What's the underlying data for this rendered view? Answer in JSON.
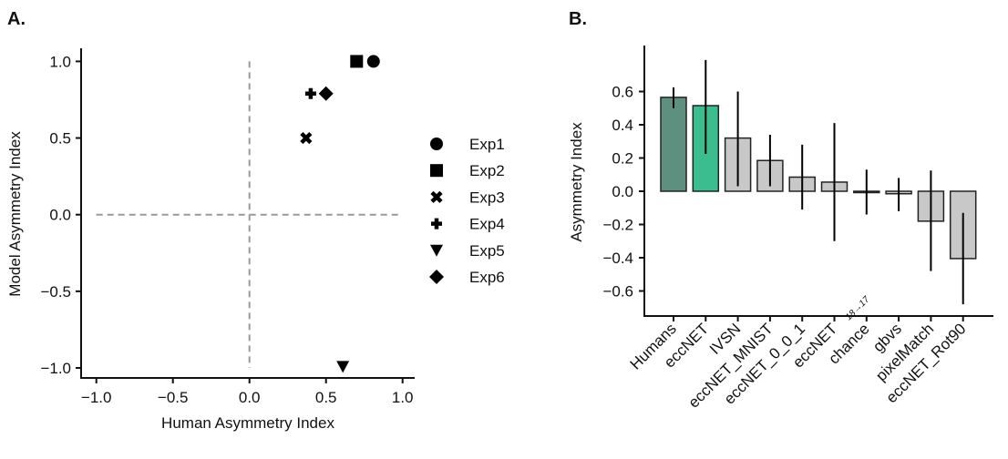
{
  "chart_data": [
    {
      "type": "scatter",
      "panel_label": "A.",
      "xlabel": "Human Asymmetry Index",
      "ylabel": "Model Asymmetry Index",
      "xlim": [
        -1.1,
        1.1
      ],
      "ylim": [
        -1.05,
        1.05
      ],
      "xticks": [
        "−1.0",
        "−0.5",
        "0.0",
        "0.5",
        "1.0"
      ],
      "xtick_values": [
        -1,
        -0.5,
        0,
        0.5,
        1
      ],
      "yticks": [
        "1.0",
        "0.5",
        "0.0",
        "−0.5",
        "−1.0"
      ],
      "ytick_values": [
        1,
        0.5,
        0,
        -0.5,
        -1
      ],
      "grid": false,
      "reference_lines": "dashed at x=0 and y=0",
      "legend_position": "right",
      "series": [
        {
          "name": "Exp1",
          "marker": "circle",
          "x": 0.81,
          "y": 1.0
        },
        {
          "name": "Exp2",
          "marker": "square",
          "x": 0.7,
          "y": 1.0
        },
        {
          "name": "Exp3",
          "marker": "x",
          "x": 0.37,
          "y": 0.5
        },
        {
          "name": "Exp4",
          "marker": "plus",
          "x": 0.4,
          "y": 0.79
        },
        {
          "name": "Exp5",
          "marker": "triangle-down",
          "x": 0.61,
          "y": -0.99
        },
        {
          "name": "Exp6",
          "marker": "diamond",
          "x": 0.5,
          "y": 0.79
        }
      ]
    },
    {
      "type": "bar",
      "panel_label": "B.",
      "xlabel": "",
      "ylabel": "Asymmetry Index",
      "ylim": [
        -0.7,
        0.85
      ],
      "yticks": [
        "0.6",
        "0.4",
        "0.2",
        "0.0",
        "−0.2",
        "−0.4",
        "−0.6"
      ],
      "ytick_values": [
        0.6,
        0.4,
        0.2,
        0,
        -0.2,
        -0.4,
        -0.6
      ],
      "categories": [
        "Humans",
        "eccNET",
        "IVSN",
        "eccNET_MNIST",
        "eccNET_0_0_1",
        "eccNET",
        "chance",
        "gbvs",
        "pixelMatch",
        "eccNET_Rot90"
      ],
      "category_subscripts": [
        "",
        "",
        "",
        "",
        "",
        "18→17",
        "",
        "",
        "",
        ""
      ],
      "values": [
        0.565,
        0.515,
        0.32,
        0.185,
        0.085,
        0.055,
        0.0,
        -0.015,
        -0.18,
        -0.405
      ],
      "error_low": [
        0.5,
        0.225,
        0.03,
        0.03,
        -0.11,
        -0.3,
        -0.14,
        -0.12,
        -0.48,
        -0.68
      ],
      "error_high": [
        0.625,
        0.79,
        0.6,
        0.34,
        0.28,
        0.41,
        0.13,
        0.08,
        0.125,
        -0.13
      ],
      "colors": [
        "#5e9080",
        "#3bbd8f",
        "#c8c8c8",
        "#c8c8c8",
        "#c8c8c8",
        "#c8c8c8",
        "#c8c8c8",
        "#c8c8c8",
        "#c8c8c8",
        "#c8c8c8"
      ]
    }
  ]
}
